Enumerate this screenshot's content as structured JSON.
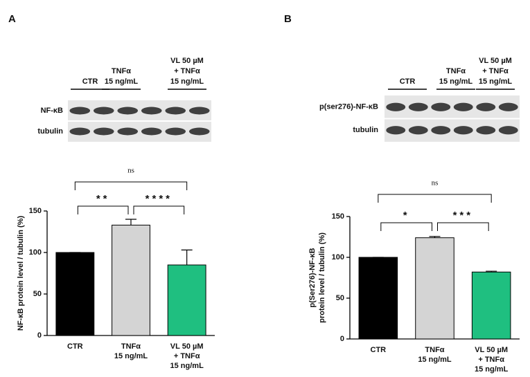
{
  "chart_data": [
    {
      "type": "bar",
      "panel": "A",
      "blot_rows": [
        "NF-κB",
        "tubulin"
      ],
      "ylabel": [
        "NF-κB protein level / tubulin (%)"
      ],
      "categories": [
        [
          "CTR"
        ],
        [
          "TNFα",
          "15 ng/mL"
        ],
        [
          "VL 50 µM",
          "+ TNFα",
          "15 ng/mL"
        ]
      ],
      "values": [
        100,
        133,
        85
      ],
      "errors": [
        0,
        7,
        18
      ],
      "colors": [
        "#000000",
        "#d4d4d4",
        "#1fbf80"
      ],
      "ylim": [
        0,
        150
      ],
      "yticks": [
        0,
        50,
        100,
        150
      ],
      "comparisons": [
        {
          "between": [
            0,
            2
          ],
          "label": "ns"
        },
        {
          "between": [
            0,
            1
          ],
          "label": "**"
        },
        {
          "between": [
            1,
            2
          ],
          "label": "****"
        }
      ]
    },
    {
      "type": "bar",
      "panel": "B",
      "blot_rows": [
        "p(ser276)-NF-κB",
        "tubulin"
      ],
      "ylabel": [
        "p(Ser276)-NF-κB",
        "protein level / tubulin (%)"
      ],
      "categories": [
        [
          "CTR"
        ],
        [
          "TNFα",
          "15 ng/mL"
        ],
        [
          "VL 50 µM",
          "+ TNFα",
          "15 ng/mL"
        ]
      ],
      "values": [
        100,
        124,
        82
      ],
      "errors": [
        0,
        1.5,
        1
      ],
      "colors": [
        "#000000",
        "#d4d4d4",
        "#1fbf80"
      ],
      "ylim": [
        0,
        150
      ],
      "yticks": [
        0,
        50,
        100,
        150
      ],
      "comparisons": [
        {
          "between": [
            0,
            2
          ],
          "label": "ns"
        },
        {
          "between": [
            0,
            1
          ],
          "label": "*"
        },
        {
          "between": [
            1,
            2
          ],
          "label": "***"
        }
      ]
    }
  ]
}
